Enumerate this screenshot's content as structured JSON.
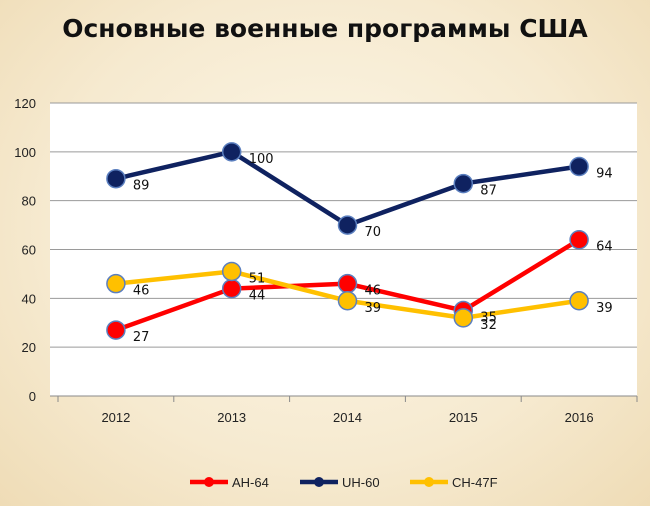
{
  "chart_data": {
    "type": "line",
    "title": "Основные военные программы США",
    "categories": [
      "2012",
      "2013",
      "2014",
      "2015",
      "2016"
    ],
    "ylim": [
      0,
      120
    ],
    "yticks": [
      0,
      20,
      40,
      60,
      80,
      100,
      120
    ],
    "grid": true,
    "legend": "bottom",
    "series": [
      {
        "name": "AH-64",
        "values": [
          27,
          44,
          46,
          35,
          64
        ],
        "color": "#ff0000"
      },
      {
        "name": "UH-60",
        "values": [
          89,
          100,
          70,
          87,
          94
        ],
        "color": "#0f2260"
      },
      {
        "name": "CH-47F",
        "values": [
          46,
          51,
          39,
          32,
          39
        ],
        "color": "#ffc000"
      }
    ]
  }
}
